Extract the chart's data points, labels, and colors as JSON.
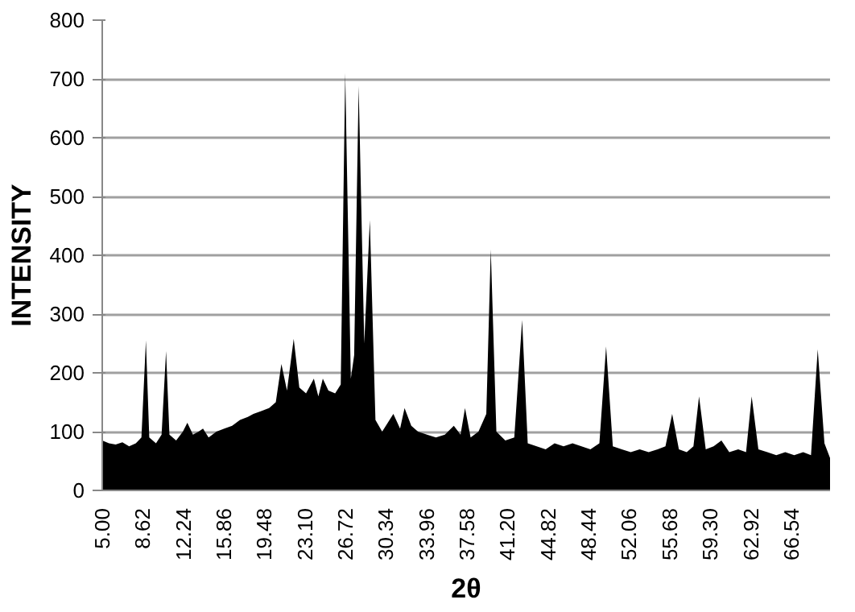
{
  "chart_data": {
    "type": "area",
    "xlabel": "2θ",
    "ylabel": "INTENSITY",
    "x": [
      5.0,
      5.6,
      6.2,
      6.8,
      7.4,
      8.0,
      8.5,
      8.9,
      9.2,
      9.8,
      10.3,
      10.7,
      11.0,
      11.6,
      12.2,
      12.6,
      13.1,
      13.6,
      14.0,
      14.5,
      15.2,
      15.9,
      16.6,
      17.3,
      18.0,
      18.5,
      19.2,
      19.9,
      20.5,
      21.0,
      21.5,
      22.1,
      22.6,
      23.2,
      23.9,
      24.3,
      24.7,
      25.2,
      25.8,
      26.3,
      26.7,
      27.2,
      27.5,
      27.9,
      28.4,
      28.9,
      29.4,
      30.0,
      31.0,
      31.6,
      32.0,
      32.6,
      33.2,
      34.0,
      34.8,
      35.6,
      36.4,
      37.0,
      37.4,
      37.9,
      38.6,
      39.3,
      39.7,
      40.2,
      41.0,
      41.8,
      42.5,
      43.0,
      43.8,
      44.6,
      45.4,
      46.2,
      47.0,
      47.8,
      48.6,
      49.4,
      50.0,
      50.6,
      51.4,
      52.2,
      53.0,
      53.8,
      54.6,
      55.3,
      55.9,
      56.5,
      57.2,
      57.8,
      58.3,
      58.9,
      59.6,
      60.3,
      61.0,
      61.8,
      62.5,
      63.0,
      63.6,
      64.4,
      65.2,
      66.0,
      66.8,
      67.6,
      68.3,
      68.9,
      69.5,
      70.0
    ],
    "values": [
      85,
      80,
      78,
      82,
      75,
      80,
      90,
      255,
      90,
      80,
      95,
      237,
      95,
      85,
      100,
      115,
      95,
      100,
      105,
      90,
      100,
      105,
      110,
      120,
      125,
      130,
      135,
      140,
      150,
      215,
      170,
      258,
      175,
      165,
      190,
      160,
      190,
      170,
      165,
      180,
      710,
      190,
      230,
      688,
      250,
      460,
      120,
      100,
      130,
      105,
      140,
      110,
      100,
      95,
      90,
      95,
      110,
      95,
      140,
      90,
      100,
      130,
      410,
      100,
      85,
      90,
      290,
      80,
      75,
      70,
      80,
      75,
      80,
      75,
      70,
      80,
      245,
      75,
      70,
      65,
      70,
      65,
      70,
      75,
      130,
      70,
      65,
      75,
      160,
      70,
      75,
      85,
      65,
      70,
      65,
      160,
      70,
      65,
      60,
      65,
      60,
      65,
      60,
      240,
      80,
      55
    ],
    "color": "#000000",
    "xlim": [
      5,
      70
    ],
    "xticks": [
      {
        "value": 5.0,
        "label": "5.00"
      },
      {
        "value": 8.62,
        "label": "8.62"
      },
      {
        "value": 12.24,
        "label": "12.24"
      },
      {
        "value": 15.86,
        "label": "15.86"
      },
      {
        "value": 19.48,
        "label": "19.48"
      },
      {
        "value": 23.1,
        "label": "23.10"
      },
      {
        "value": 26.72,
        "label": "26.72"
      },
      {
        "value": 30.34,
        "label": "30.34"
      },
      {
        "value": 33.96,
        "label": "33.96"
      },
      {
        "value": 37.58,
        "label": "37.58"
      },
      {
        "value": 41.2,
        "label": "41.20"
      },
      {
        "value": 44.82,
        "label": "44.82"
      },
      {
        "value": 48.44,
        "label": "48.44"
      },
      {
        "value": 52.06,
        "label": "52.06"
      },
      {
        "value": 55.68,
        "label": "55.68"
      },
      {
        "value": 59.3,
        "label": "59.30"
      },
      {
        "value": 62.92,
        "label": "62.92"
      },
      {
        "value": 66.54,
        "label": "66.54"
      }
    ],
    "ylim": [
      0,
      800
    ],
    "yticks": [
      0,
      100,
      200,
      300,
      400,
      500,
      600,
      700,
      800
    ],
    "grid": "y"
  }
}
